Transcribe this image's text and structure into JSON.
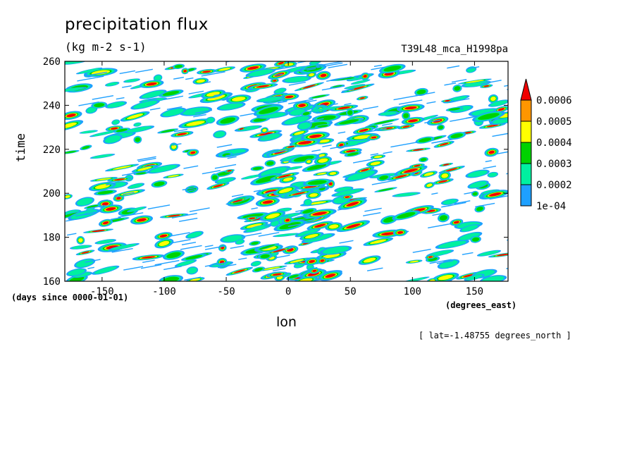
{
  "chart_data": {
    "type": "heatmap",
    "title": "precipitation flux",
    "units": "(kg m-2 s-1)",
    "run_label": "T39L48_mca_H1998pa",
    "xlabel": "lon",
    "xlabel_units": "(degrees_east)",
    "ylabel": "time",
    "ylabel_units": "(days since 0000-01-01)",
    "subtitle": "[ lat=-1.48755 degrees_north ]",
    "xlim": [
      -180,
      177
    ],
    "ylim": [
      160,
      260
    ],
    "x_ticks": [
      -150,
      -100,
      -50,
      0,
      50,
      100,
      150
    ],
    "x_tick_labels": [
      "-150",
      "-100",
      "-50",
      "0",
      "50",
      "100",
      "150"
    ],
    "y_ticks": [
      160,
      180,
      200,
      220,
      240,
      260
    ],
    "y_tick_labels": [
      "160",
      "180",
      "200",
      "220",
      "240",
      "260"
    ],
    "colorbar": {
      "levels": [
        0.0001,
        0.0002,
        0.0003,
        0.0004,
        0.0005,
        0.0006
      ],
      "level_labels": [
        "1e-04",
        "0.0002",
        "0.0003",
        "0.0004",
        "0.0005",
        "0.0006"
      ],
      "colors": [
        "#1ea0ff",
        "#00f0a0",
        "#00d200",
        "#ffff00",
        "#ff9600",
        "#f00000"
      ],
      "extend": "max"
    }
  }
}
